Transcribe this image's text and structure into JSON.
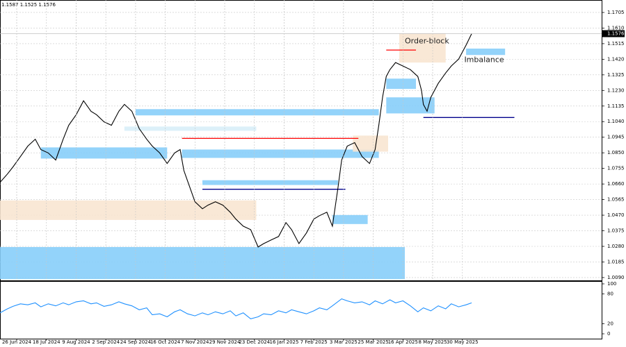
{
  "chart_data": [
    {
      "type": "line",
      "header": "1.1587 1.1525 1.1576",
      "last_price": 1.1576,
      "x": [
        0,
        4,
        7,
        11,
        15,
        19,
        22,
        26,
        30,
        34,
        37,
        41,
        45,
        49,
        52,
        56,
        60,
        64,
        67,
        71,
        75,
        79,
        82,
        86,
        90,
        94,
        97,
        99,
        101,
        105,
        109,
        112,
        116,
        120,
        124,
        127,
        131,
        135,
        139,
        142,
        146,
        150,
        154,
        157,
        161,
        165,
        169,
        172,
        176,
        179,
        182,
        184,
        187,
        191,
        195,
        199,
        202,
        204,
        206,
        208,
        210,
        213,
        217,
        221,
        225,
        227,
        228,
        230,
        232,
        236,
        240,
        243,
        247,
        251,
        254
      ],
      "series": [
        {
          "color": "#000000",
          "values": [
            1.067,
            1.0721,
            1.0764,
            1.0827,
            1.0891,
            1.0933,
            1.087,
            1.0849,
            1.0806,
            1.0933,
            1.1018,
            1.1082,
            1.1167,
            1.1103,
            1.1082,
            1.1039,
            1.1018,
            1.1103,
            1.1145,
            1.1103,
            1.0997,
            1.0933,
            1.0891,
            1.0849,
            1.0785,
            1.0849,
            1.087,
            1.0743,
            1.0679,
            1.0552,
            1.0509,
            1.0531,
            1.0552,
            1.0531,
            1.0488,
            1.0446,
            1.0403,
            1.0382,
            1.0276,
            1.0297,
            1.0319,
            1.034,
            1.0425,
            1.0382,
            1.0297,
            1.0361,
            1.0446,
            1.0467,
            1.0488,
            1.0403,
            1.0637,
            1.0806,
            1.0891,
            1.0912,
            1.0827,
            1.0785,
            1.087,
            1.1018,
            1.1188,
            1.1315,
            1.1357,
            1.14,
            1.1379,
            1.1357,
            1.1315,
            1.123,
            1.1145,
            1.1103,
            1.1188,
            1.1273,
            1.1336,
            1.1379,
            1.1421,
            1.1506,
            1.1576
          ]
        }
      ],
      "xlim": [
        0,
        324
      ],
      "ylim": [
        1.0077,
        1.1781
      ],
      "yticks": [
        1.1705,
        {
          "value": 1.161,
          "label": "1.1610"
        },
        1.1515,
        {
          "value": 1.142,
          "label": "1.1420"
        },
        1.1325,
        {
          "value": 1.123,
          "label": "1.1230"
        },
        1.1135,
        {
          "value": 1.104,
          "label": "1.1040"
        },
        1.0945,
        {
          "value": 1.085,
          "label": "1.0850"
        },
        1.0755,
        {
          "value": 1.066,
          "label": "1.0660"
        },
        1.0565,
        {
          "value": 1.047,
          "label": "1.0470"
        },
        1.0375,
        {
          "value": 1.028,
          "label": "1.0280"
        },
        1.0185,
        {
          "value": 1.009,
          "label": "1.0090"
        }
      ],
      "grid": true,
      "zones": [
        {
          "x": [
            0,
            218
          ],
          "y": [
            1.008,
            1.0276
          ],
          "color": "#87cefa"
        },
        {
          "x": [
            0,
            138
          ],
          "y": [
            1.0441,
            1.056
          ],
          "color": "#f8e6d2"
        },
        {
          "x": [
            73,
            204
          ],
          "y": [
            1.1078,
            1.1116
          ],
          "color": "#87cefa"
        },
        {
          "x": [
            22,
            90
          ],
          "y": [
            1.0815,
            1.0883
          ],
          "color": "#87cefa"
        },
        {
          "x": [
            98,
            204
          ],
          "y": [
            1.0819,
            1.087
          ],
          "color": "#87cefa"
        },
        {
          "x": [
            109,
            182
          ],
          "y": [
            1.0654,
            1.0683
          ],
          "color": "#87cefa"
        },
        {
          "x": [
            67,
            138
          ],
          "y": [
            1.0984,
            1.101
          ],
          "color": "#d8eef8"
        },
        {
          "x": [
            208,
            234
          ],
          "y": [
            1.109,
            1.1188
          ],
          "color": "#87cefa"
        },
        {
          "x": [
            208,
            224
          ],
          "y": [
            1.1239,
            1.1302
          ],
          "color": "#87cefa"
        },
        {
          "x": [
            251,
            272
          ],
          "y": [
            1.1446,
            1.1485
          ],
          "color": "#87cefa"
        },
        {
          "x": [
            215,
            240
          ],
          "y": [
            1.14,
            1.1578
          ],
          "color": "#f8e6d2"
        },
        {
          "x": [
            190,
            209
          ],
          "y": [
            1.0857,
            1.0955
          ],
          "color": "#f8e6d2"
        },
        {
          "x": [
            179,
            198
          ],
          "y": [
            1.0416,
            1.0471
          ],
          "color": "#87cefa"
        }
      ],
      "levels": [
        {
          "x": [
            98,
            193
          ],
          "value": 1.0938,
          "color": "#ff0000"
        },
        {
          "x": [
            109,
            186
          ],
          "value": 1.0628,
          "color": "#00008b"
        },
        {
          "x": [
            228,
            277
          ],
          "value": 1.1065,
          "color": "#00008b"
        },
        {
          "x": [
            208,
            224
          ],
          "value": 1.1476,
          "color": "#ff0000"
        }
      ],
      "annotations": [
        {
          "text": "Order-block",
          "x": 218,
          "value": 1.153
        },
        {
          "text": "Imbalance",
          "x": 250,
          "value": 1.1416
        }
      ]
    },
    {
      "type": "line",
      "x": [
        0,
        4,
        7,
        11,
        15,
        19,
        22,
        26,
        30,
        34,
        37,
        41,
        45,
        49,
        52,
        56,
        60,
        64,
        67,
        71,
        75,
        79,
        82,
        86,
        90,
        94,
        97,
        101,
        105,
        109,
        112,
        116,
        120,
        124,
        127,
        131,
        135,
        139,
        142,
        146,
        150,
        154,
        157,
        161,
        165,
        169,
        172,
        176,
        179,
        184,
        187,
        191,
        195,
        199,
        202,
        206,
        210,
        213,
        217,
        221,
        225,
        228,
        232,
        236,
        240,
        243,
        247,
        251,
        254
      ],
      "series": [
        {
          "color": "#1e90ff",
          "values": [
            42,
            50,
            55,
            60,
            58,
            62,
            54,
            60,
            56,
            62,
            58,
            64,
            66,
            60,
            62,
            55,
            58,
            64,
            60,
            56,
            48,
            52,
            38,
            40,
            34,
            44,
            48,
            40,
            36,
            42,
            38,
            44,
            40,
            46,
            36,
            42,
            30,
            34,
            40,
            38,
            46,
            42,
            48,
            44,
            40,
            46,
            52,
            48,
            56,
            70,
            66,
            62,
            64,
            58,
            66,
            60,
            68,
            62,
            66,
            56,
            44,
            52,
            46,
            56,
            50,
            60,
            54,
            58,
            62
          ]
        }
      ],
      "xlim": [
        0,
        324
      ],
      "ylim": [
        0,
        100
      ],
      "yticks": [
        100,
        80,
        20,
        0
      ],
      "xticks": [
        {
          "value": 9,
          "label": "26 Jun 2024"
        },
        {
          "value": 25,
          "label": "18 Jul 2024"
        },
        {
          "value": 41,
          "label": "9 Aug 2024"
        },
        {
          "value": 57,
          "label": "2 Sep 2024"
        },
        {
          "value": 73,
          "label": "24 Sep 2024"
        },
        {
          "value": 89,
          "label": "16 Oct 2024"
        },
        {
          "value": 105,
          "label": "7 Nov 2024"
        },
        {
          "value": 121,
          "label": "29 Nov 2024"
        },
        {
          "value": 137,
          "label": "23 Dec 2024"
        },
        {
          "value": 153,
          "label": "16 Jan 2025"
        },
        {
          "value": 169,
          "label": "7 Feb 2025"
        },
        {
          "value": 185,
          "label": "3 Mar 2025"
        },
        {
          "value": 201,
          "label": "25 Mar 2025"
        },
        {
          "value": 217,
          "label": "16 Apr 2025"
        },
        {
          "value": 233,
          "label": "8 May 2025"
        },
        {
          "value": 249,
          "label": "30 May 2025"
        }
      ]
    }
  ]
}
